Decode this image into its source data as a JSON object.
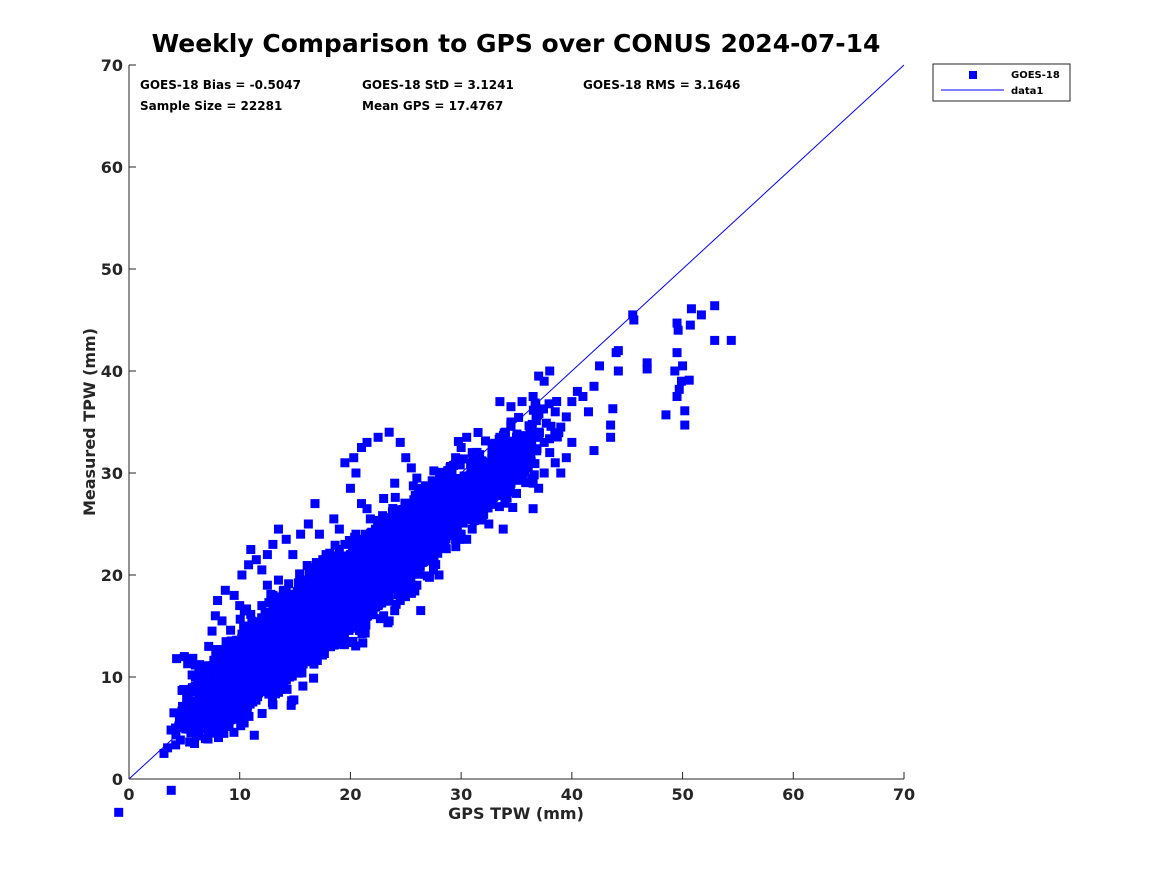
{
  "chart_data": {
    "type": "scatter",
    "title": "Weekly Comparison to GPS over CONUS 2024-07-14",
    "xlabel": "GPS TPW (mm)",
    "ylabel": "Measured TPW (mm)",
    "xlim": [
      0,
      70
    ],
    "ylim": [
      0,
      70
    ],
    "xticks": [
      "0",
      "10",
      "20",
      "30",
      "40",
      "50",
      "60",
      "70"
    ],
    "yticks": [
      "0",
      "10",
      "20",
      "30",
      "40",
      "50",
      "60",
      "70"
    ],
    "grid": false,
    "legend_position": "outside top-right",
    "stats": [
      "GOES-18 Bias = -0.5047",
      "GOES-18 StD = 3.1241",
      "GOES-18 RMS = 3.1646",
      "Sample Size = 22281",
      "Mean GPS = 17.4767"
    ],
    "legend": [
      "GOES-18",
      "data1"
    ],
    "series": [
      {
        "name": "GOES-18",
        "marker": "square",
        "color": "#0000ff",
        "points": [
          [
            3.8,
            4.8
          ],
          [
            4.2,
            5.0
          ],
          [
            4.5,
            5.2
          ],
          [
            4.8,
            5.6
          ],
          [
            5.2,
            5.8
          ],
          [
            5.6,
            6.0
          ],
          [
            6.0,
            6.3
          ],
          [
            6.3,
            6.0
          ],
          [
            4.3,
            11.8
          ],
          [
            5.0,
            12.0
          ],
          [
            5.3,
            11.3
          ],
          [
            5.7,
            10.2
          ],
          [
            6.0,
            9.0
          ],
          [
            6.5,
            8.0
          ],
          [
            6.2,
            7.2
          ],
          [
            7.0,
            7.5
          ],
          [
            7.5,
            6.5
          ],
          [
            8.0,
            6.2
          ],
          [
            8.5,
            7.0
          ],
          [
            9.0,
            6.0
          ],
          [
            7.2,
            13.0
          ],
          [
            7.5,
            14.5
          ],
          [
            7.8,
            16.0
          ],
          [
            8.0,
            17.5
          ],
          [
            8.4,
            15.5
          ],
          [
            8.8,
            13.0
          ],
          [
            9.2,
            11.0
          ],
          [
            9.5,
            9.5
          ],
          [
            10.0,
            8.0
          ],
          [
            10.5,
            7.2
          ],
          [
            11.0,
            7.8
          ],
          [
            11.5,
            8.5
          ],
          [
            8.7,
            18.5
          ],
          [
            9.5,
            18.0
          ],
          [
            10.0,
            17.0
          ],
          [
            10.5,
            15.0
          ],
          [
            11.0,
            14.0
          ],
          [
            11.8,
            12.5
          ],
          [
            12.2,
            11.0
          ],
          [
            12.8,
            10.0
          ],
          [
            13.0,
            9.0
          ],
          [
            13.5,
            8.5
          ],
          [
            14.0,
            9.2
          ],
          [
            14.5,
            10.0
          ],
          [
            15.0,
            11.0
          ],
          [
            15.5,
            10.8
          ],
          [
            16.0,
            11.5
          ],
          [
            16.5,
            12.0
          ],
          [
            10.2,
            20.0
          ],
          [
            10.8,
            21.0
          ],
          [
            11.0,
            22.5
          ],
          [
            11.5,
            21.5
          ],
          [
            12.0,
            20.5
          ],
          [
            12.5,
            19.0
          ],
          [
            13.0,
            18.0
          ],
          [
            13.5,
            16.5
          ],
          [
            14.0,
            15.0
          ],
          [
            14.5,
            14.0
          ],
          [
            15.0,
            13.5
          ],
          [
            15.5,
            14.5
          ],
          [
            16.0,
            15.5
          ],
          [
            16.5,
            16.0
          ],
          [
            17.0,
            15.0
          ],
          [
            17.5,
            14.5
          ],
          [
            12.5,
            22.0
          ],
          [
            13.0,
            23.0
          ],
          [
            13.5,
            24.5
          ],
          [
            14.2,
            23.5
          ],
          [
            14.8,
            22.0
          ],
          [
            15.5,
            24.0
          ],
          [
            16.2,
            25.0
          ],
          [
            16.8,
            27.0
          ],
          [
            17.2,
            24.0
          ],
          [
            17.8,
            22.0
          ],
          [
            18.2,
            20.5
          ],
          [
            18.5,
            19.0
          ],
          [
            19.0,
            18.0
          ],
          [
            19.5,
            17.5
          ],
          [
            20.0,
            16.5
          ],
          [
            20.5,
            15.5
          ],
          [
            18.5,
            25.5
          ],
          [
            19.0,
            24.5
          ],
          [
            19.5,
            23.0
          ],
          [
            20.0,
            22.0
          ],
          [
            20.5,
            21.0
          ],
          [
            21.0,
            20.0
          ],
          [
            21.5,
            19.0
          ],
          [
            22.0,
            18.0
          ],
          [
            22.5,
            17.0
          ],
          [
            23.0,
            16.0
          ],
          [
            23.5,
            15.5
          ],
          [
            24.0,
            16.5
          ],
          [
            24.5,
            17.5
          ],
          [
            25.0,
            18.5
          ],
          [
            25.5,
            18.2
          ],
          [
            26.0,
            19.0
          ],
          [
            20.0,
            28.5
          ],
          [
            20.5,
            30.0
          ],
          [
            21.0,
            27.0
          ],
          [
            21.8,
            25.5
          ],
          [
            22.5,
            24.0
          ],
          [
            23.0,
            23.0
          ],
          [
            23.5,
            22.0
          ],
          [
            24.0,
            21.0
          ],
          [
            24.5,
            20.5
          ],
          [
            25.0,
            21.5
          ],
          [
            25.5,
            22.5
          ],
          [
            26.0,
            23.0
          ],
          [
            26.5,
            22.0
          ],
          [
            27.0,
            21.5
          ],
          [
            27.5,
            20.5
          ],
          [
            28.0,
            20.0
          ],
          [
            19.5,
            31.0
          ],
          [
            20.3,
            31.5
          ],
          [
            21.0,
            32.5
          ],
          [
            21.5,
            33.0
          ],
          [
            22.5,
            33.5
          ],
          [
            23.5,
            34.0
          ],
          [
            24.5,
            33.0
          ],
          [
            25.0,
            31.5
          ],
          [
            25.5,
            30.5
          ],
          [
            26.0,
            29.5
          ],
          [
            26.5,
            28.5
          ],
          [
            27.0,
            28.0
          ],
          [
            27.5,
            27.0
          ],
          [
            28.0,
            26.0
          ],
          [
            28.5,
            25.5
          ],
          [
            29.0,
            26.5
          ],
          [
            28.5,
            29.0
          ],
          [
            29.0,
            30.5
          ],
          [
            29.5,
            31.5
          ],
          [
            30.0,
            32.5
          ],
          [
            30.5,
            33.5
          ],
          [
            31.0,
            32.0
          ],
          [
            31.5,
            30.5
          ],
          [
            32.0,
            29.5
          ],
          [
            30.0,
            24.0
          ],
          [
            30.5,
            23.5
          ],
          [
            31.0,
            24.5
          ],
          [
            31.5,
            25.5
          ],
          [
            32.0,
            26.5
          ],
          [
            32.5,
            27.0
          ],
          [
            33.0,
            28.0
          ],
          [
            33.5,
            29.0
          ],
          [
            32.5,
            31.0
          ],
          [
            33.0,
            32.5
          ],
          [
            33.5,
            33.5
          ],
          [
            34.0,
            34.0
          ],
          [
            34.5,
            35.0
          ],
          [
            35.0,
            33.5
          ],
          [
            35.5,
            32.5
          ],
          [
            36.0,
            31.5
          ],
          [
            34.0,
            30.0
          ],
          [
            34.5,
            29.0
          ],
          [
            35.0,
            28.0
          ],
          [
            35.5,
            29.5
          ],
          [
            36.0,
            30.5
          ],
          [
            36.5,
            29.0
          ],
          [
            37.0,
            28.5
          ],
          [
            37.5,
            30.0
          ],
          [
            33.5,
            37.0
          ],
          [
            34.5,
            36.5
          ],
          [
            35.5,
            37.0
          ],
          [
            36.5,
            37.5
          ],
          [
            37.0,
            39.5
          ],
          [
            37.5,
            39.0
          ],
          [
            38.0,
            40.0
          ],
          [
            38.5,
            36.0
          ],
          [
            36.0,
            33.5
          ],
          [
            37.0,
            34.0
          ],
          [
            37.5,
            33.0
          ],
          [
            38.0,
            32.0
          ],
          [
            38.5,
            31.0
          ],
          [
            39.0,
            30.0
          ],
          [
            39.5,
            31.5
          ],
          [
            40.0,
            33.0
          ],
          [
            39.0,
            34.5
          ],
          [
            39.5,
            35.5
          ],
          [
            40.0,
            37.0
          ],
          [
            40.5,
            38.0
          ],
          [
            41.0,
            37.5
          ],
          [
            41.5,
            36.0
          ],
          [
            42.0,
            38.5
          ],
          [
            42.5,
            40.5
          ],
          [
            42.0,
            32.2
          ],
          [
            43.5,
            33.5
          ],
          [
            43.5,
            34.7
          ],
          [
            43.7,
            36.3
          ],
          [
            44.0,
            41.8
          ],
          [
            44.2,
            42.0
          ],
          [
            44.2,
            40.0
          ],
          [
            36.5,
            26.5
          ],
          [
            45.5,
            45.5
          ],
          [
            45.6,
            45.0
          ],
          [
            46.8,
            40.8
          ],
          [
            46.8,
            40.2
          ],
          [
            48.5,
            35.7
          ],
          [
            49.3,
            40.0
          ],
          [
            49.5,
            41.8
          ],
          [
            49.6,
            44.0
          ],
          [
            49.5,
            44.7
          ],
          [
            49.7,
            38.2
          ],
          [
            49.5,
            37.5
          ],
          [
            49.9,
            39.0
          ],
          [
            50.0,
            40.5
          ],
          [
            50.2,
            36.1
          ],
          [
            50.2,
            34.7
          ],
          [
            50.6,
            39.1
          ],
          [
            50.7,
            44.5
          ],
          [
            50.8,
            46.1
          ],
          [
            51.7,
            45.5
          ],
          [
            52.9,
            43.0
          ],
          [
            52.9,
            46.4
          ],
          [
            54.4,
            43.0
          ],
          [
            25.5,
            18.3
          ],
          [
            26.8,
            21.5
          ],
          [
            27.5,
            22.0
          ],
          [
            29.3,
            26.0
          ],
          [
            30.0,
            27.5
          ],
          [
            31.0,
            28.5
          ],
          [
            32.5,
            25.0
          ],
          [
            33.8,
            24.5
          ],
          [
            16.0,
            18.0
          ],
          [
            17.0,
            19.0
          ],
          [
            18.0,
            20.0
          ],
          [
            19.0,
            21.0
          ],
          [
            18.0,
            17.0
          ],
          [
            17.0,
            17.5
          ],
          [
            15.0,
            17.0
          ],
          [
            14.0,
            18.5
          ],
          [
            13.0,
            14.0
          ],
          [
            12.0,
            15.5
          ],
          [
            11.0,
            13.0
          ],
          [
            10.0,
            12.0
          ],
          [
            9.0,
            12.0
          ],
          [
            8.0,
            11.5
          ],
          [
            7.0,
            11.0
          ],
          [
            6.0,
            10.0
          ],
          [
            12.0,
            17.0
          ],
          [
            13.5,
            19.5
          ],
          [
            15.5,
            19.5
          ],
          [
            17.5,
            21.5
          ],
          [
            19.0,
            22.5
          ],
          [
            20.5,
            24.0
          ],
          [
            21.5,
            26.5
          ],
          [
            23.0,
            27.5
          ],
          [
            24.0,
            29.0
          ],
          [
            25.0,
            27.0
          ],
          [
            26.5,
            26.0
          ],
          [
            27.5,
            25.0
          ],
          [
            28.5,
            24.0
          ],
          [
            29.5,
            23.5
          ],
          [
            22.0,
            23.0
          ],
          [
            21.0,
            23.5
          ]
        ]
      },
      {
        "name": "data1",
        "type": "line",
        "color": "#0000ff",
        "x": [
          0,
          70
        ],
        "y": [
          0,
          70
        ]
      }
    ]
  }
}
